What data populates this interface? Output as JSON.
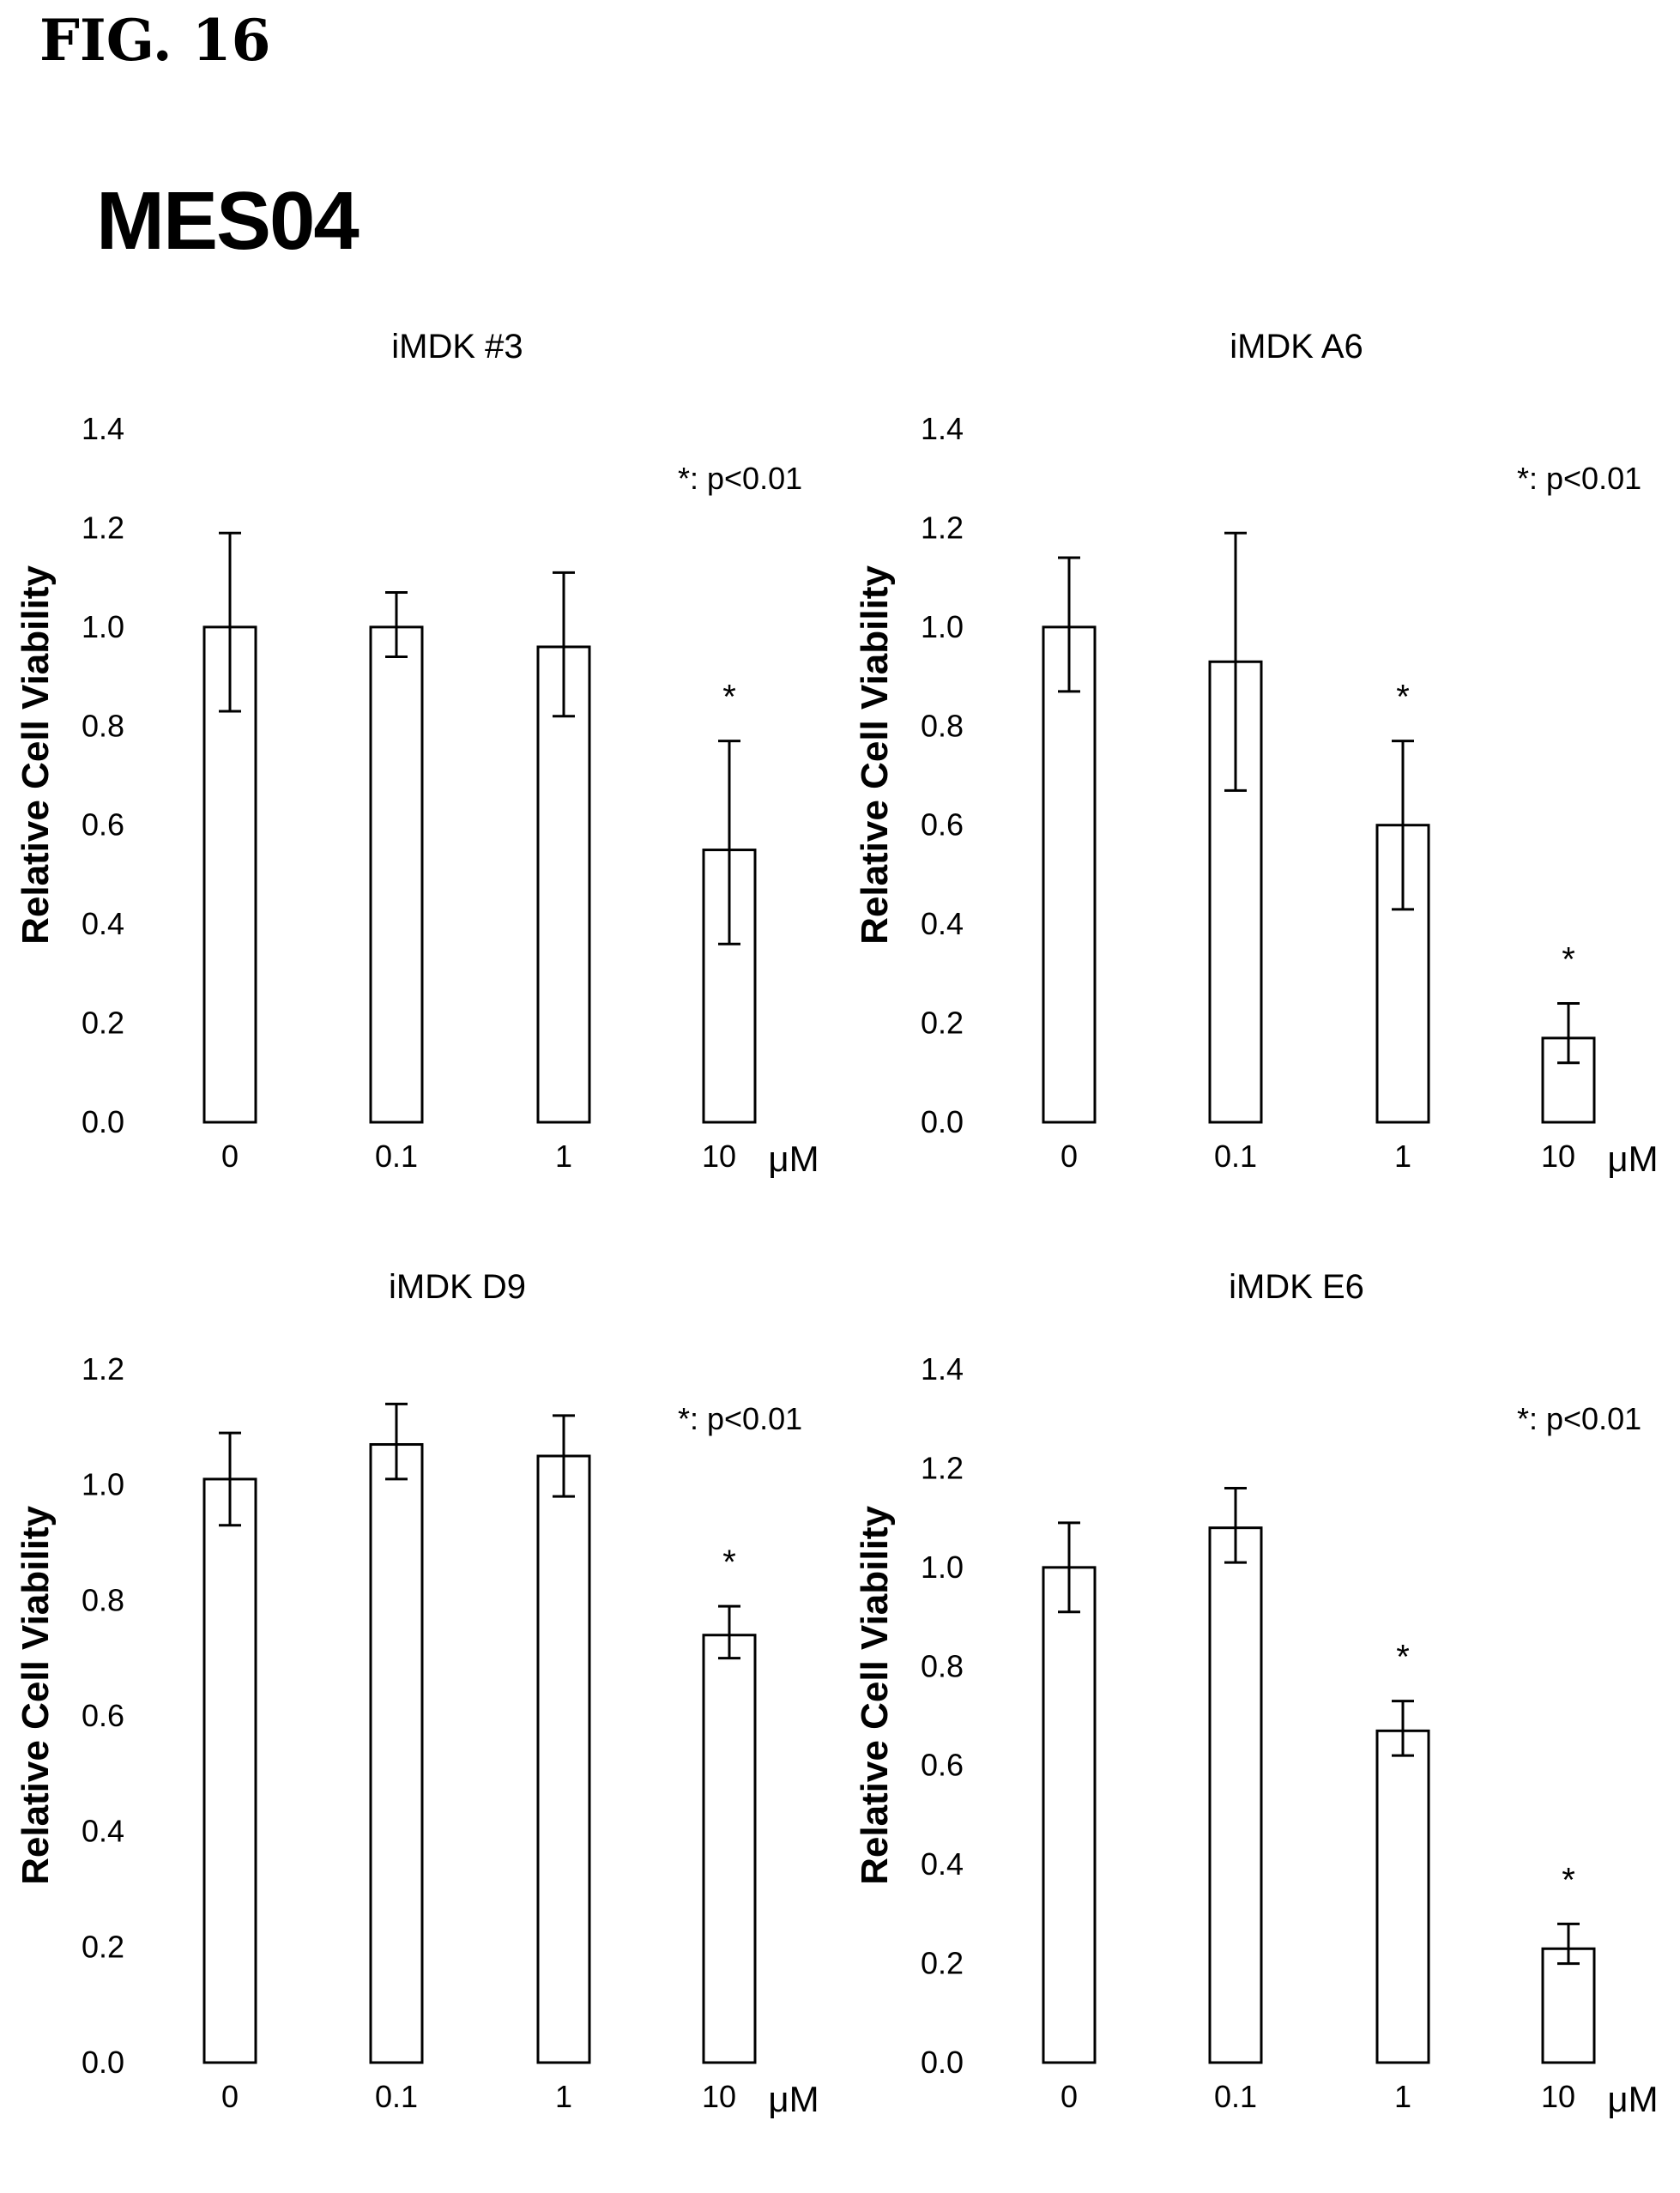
{
  "figure_label": "FIG. 16",
  "main_title": "MES04",
  "chart_data": [
    {
      "type": "bar",
      "title": "iMDK #3",
      "ylabel": "Relative Cell Viability",
      "xlabel": "",
      "unit_label": "μM",
      "annotation": "*: p<0.01",
      "categories": [
        "0",
        "0.1",
        "1",
        "10"
      ],
      "values": [
        1.0,
        1.0,
        0.96,
        0.55
      ],
      "error_low": [
        0.83,
        0.94,
        0.82,
        0.36
      ],
      "error_high": [
        1.19,
        1.07,
        1.11,
        0.77
      ],
      "significance": [
        "",
        "",
        "",
        "*"
      ],
      "ylim": [
        0.0,
        1.4
      ],
      "yticks": [
        "0.0",
        "0.2",
        "0.4",
        "0.6",
        "0.8",
        "1.0",
        "1.2",
        "1.4"
      ],
      "grid": false
    },
    {
      "type": "bar",
      "title": "iMDK A6",
      "ylabel": "Relative Cell Viability",
      "xlabel": "",
      "unit_label": "μM",
      "annotation": "*: p<0.01",
      "categories": [
        "0",
        "0.1",
        "1",
        "10"
      ],
      "values": [
        1.0,
        0.93,
        0.6,
        0.17
      ],
      "error_low": [
        0.87,
        0.67,
        0.43,
        0.12
      ],
      "error_high": [
        1.14,
        1.19,
        0.77,
        0.24
      ],
      "significance": [
        "",
        "",
        "*",
        "*"
      ],
      "ylim": [
        0.0,
        1.4
      ],
      "yticks": [
        "0.0",
        "0.2",
        "0.4",
        "0.6",
        "0.8",
        "1.0",
        "1.2",
        "1.4"
      ],
      "grid": false
    },
    {
      "type": "bar",
      "title": "iMDK D9",
      "ylabel": "Relative Cell Viability",
      "xlabel": "",
      "unit_label": "μM",
      "annotation": "*: p<0.01",
      "categories": [
        "0",
        "0.1",
        "1",
        "10"
      ],
      "values": [
        1.01,
        1.07,
        1.05,
        0.74
      ],
      "error_low": [
        0.93,
        1.01,
        0.98,
        0.7
      ],
      "error_high": [
        1.09,
        1.14,
        1.12,
        0.79
      ],
      "significance": [
        "",
        "",
        "",
        "*"
      ],
      "ylim": [
        0.0,
        1.2
      ],
      "yticks": [
        "0.0",
        "0.2",
        "0.4",
        "0.6",
        "0.8",
        "1.0",
        "1.2"
      ],
      "grid": false
    },
    {
      "type": "bar",
      "title": "iMDK E6",
      "ylabel": "Relative Cell Viability",
      "xlabel": "",
      "unit_label": "μM",
      "annotation": "*: p<0.01",
      "categories": [
        "0",
        "0.1",
        "1",
        "10"
      ],
      "values": [
        1.0,
        1.08,
        0.67,
        0.23
      ],
      "error_low": [
        0.91,
        1.01,
        0.62,
        0.2
      ],
      "error_high": [
        1.09,
        1.16,
        0.73,
        0.28
      ],
      "significance": [
        "",
        "",
        "*",
        "*"
      ],
      "ylim": [
        0.0,
        1.4
      ],
      "yticks": [
        "0.0",
        "0.2",
        "0.4",
        "0.6",
        "0.8",
        "1.0",
        "1.2",
        "1.4"
      ],
      "grid": false
    }
  ]
}
